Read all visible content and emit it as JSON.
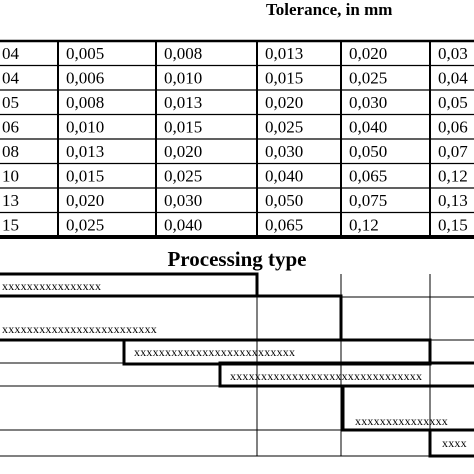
{
  "header": {
    "title": "Tolerance, in mm"
  },
  "table": {
    "rows": [
      [
        "04",
        "0,005",
        "0,008",
        "0,013",
        "0,020",
        "0,03"
      ],
      [
        "04",
        "0,006",
        "0,010",
        "0,015",
        "0,025",
        "0,04"
      ],
      [
        "05",
        "0,008",
        "0,013",
        "0,020",
        "0,030",
        "0,05"
      ],
      [
        "06",
        "0,010",
        "0,015",
        "0,025",
        "0,040",
        "0,06"
      ],
      [
        "08",
        "0,013",
        "0,020",
        "0,030",
        "0,050",
        "0,07"
      ],
      [
        "10",
        "0,015",
        "0,025",
        "0,040",
        "0,065",
        "0,12"
      ],
      [
        "13",
        "0,020",
        "0,030",
        "0,050",
        "0,075",
        "0,13"
      ],
      [
        "15",
        "0,025",
        "0,040",
        "0,065",
        "0,12",
        "0,15"
      ]
    ]
  },
  "processing": {
    "heading": "Processing type",
    "bars": [
      {
        "label": "xxxxxxxxxxxxxxxx"
      },
      {
        "label": "xxxxxxxxxxxxxxxxxxxxxxxxx"
      },
      {
        "label": "xxxxxxxxxxxxxxxxxxxxxxxxxx"
      },
      {
        "label": "xxxxxxxxxxxxxxxxxxxxxxxxxxxxxxx"
      },
      {
        "label": "xxxxxxxxxxxxxxx"
      },
      {
        "label": "xxxx"
      }
    ]
  }
}
